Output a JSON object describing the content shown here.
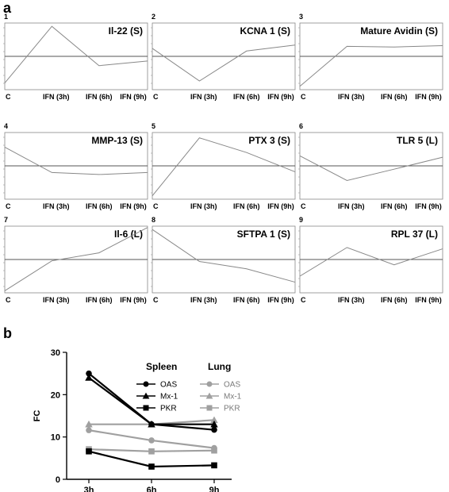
{
  "figure": {
    "panel_a_label": "a",
    "panel_b_label": "b"
  },
  "panel_a": {
    "x_ticks": [
      "C",
      "IFN (3h)",
      "IFN (6h)",
      "IFN (9h)"
    ],
    "panels": [
      {
        "num": "1",
        "title": "Il-22 (S)",
        "values": [
          0.1,
          0.95,
          0.36,
          0.43
        ]
      },
      {
        "num": "2",
        "title": "KCNA 1 (S)",
        "values": [
          0.62,
          0.13,
          0.58,
          0.67
        ]
      },
      {
        "num": "3",
        "title": "Mature  Avidin (S)",
        "values": [
          0.05,
          0.65,
          0.64,
          0.66
        ]
      },
      {
        "num": "4",
        "title": "MMP-13 (S)",
        "values": [
          0.78,
          0.4,
          0.37,
          0.4
        ]
      },
      {
        "num": "5",
        "title": "PTX 3 (S)",
        "values": [
          0.05,
          0.92,
          0.7,
          0.41
        ]
      },
      {
        "num": "6",
        "title": "TLR 5 (L)",
        "values": [
          0.65,
          0.28,
          0.45,
          0.63
        ]
      },
      {
        "num": "7",
        "title": "Il-6 (L)",
        "values": [
          0.03,
          0.48,
          0.6,
          0.98
        ]
      },
      {
        "num": "8",
        "title": "SFTPA 1 (S)",
        "values": [
          0.95,
          0.47,
          0.36,
          0.16
        ]
      },
      {
        "num": "9",
        "title": "RPL 37 (L)",
        "values": [
          0.25,
          0.68,
          0.42,
          0.66
        ]
      }
    ]
  },
  "chart_data": {
    "type": "line",
    "x": [
      "3h",
      "6h",
      "9h"
    ],
    "ylabel": "FC",
    "ylim": [
      0,
      30
    ],
    "yticks": [
      0,
      10,
      20,
      30
    ],
    "legend": {
      "groups": [
        "Spleen",
        "Lung"
      ]
    },
    "series": [
      {
        "name": "OAS",
        "group": "Spleen",
        "marker": "circle",
        "color": "#000000",
        "values": [
          25.0,
          13.0,
          11.7
        ]
      },
      {
        "name": "Mx-1",
        "group": "Spleen",
        "marker": "triangle",
        "color": "#000000",
        "values": [
          24.0,
          13.0,
          13.0
        ]
      },
      {
        "name": "PKR",
        "group": "Spleen",
        "marker": "square",
        "color": "#000000",
        "values": [
          6.6,
          3.0,
          3.3
        ]
      },
      {
        "name": "OAS",
        "group": "Lung",
        "marker": "circle",
        "color": "#a0a0a0",
        "values": [
          11.6,
          9.2,
          7.4
        ]
      },
      {
        "name": "Mx-1",
        "group": "Lung",
        "marker": "triangle",
        "color": "#a0a0a0",
        "values": [
          13.0,
          13.0,
          14.0
        ]
      },
      {
        "name": "PKR",
        "group": "Lung",
        "marker": "square",
        "color": "#a0a0a0",
        "values": [
          7.1,
          6.6,
          6.8
        ]
      }
    ]
  }
}
